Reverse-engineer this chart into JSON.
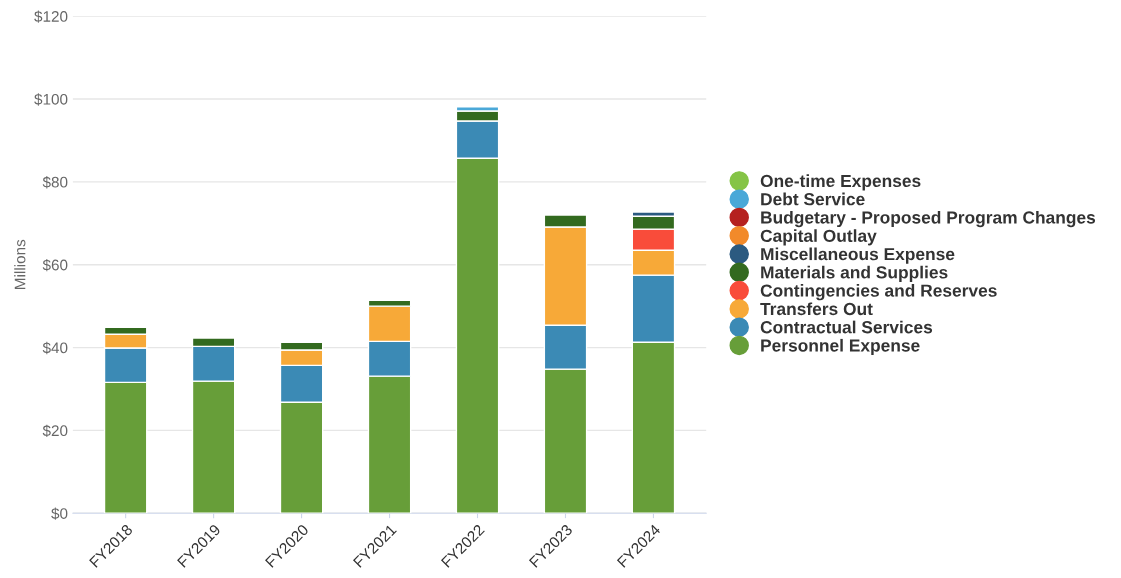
{
  "chart_data": {
    "type": "bar",
    "stacked": true,
    "ylabel": "Millions",
    "categories": [
      "FY2018",
      "FY2019",
      "FY2020",
      "FY2021",
      "FY2022",
      "FY2023",
      "FY2024"
    ],
    "series": [
      {
        "name": "Personnel Expense",
        "color": "#679e39",
        "values": [
          31.6,
          31.9,
          26.8,
          33.1,
          85.7,
          34.8,
          41.3
        ]
      },
      {
        "name": "Contractual Services",
        "color": "#3b8ab5",
        "values": [
          8.3,
          8.4,
          8.9,
          8.4,
          9.0,
          10.6,
          16.2
        ]
      },
      {
        "name": "Transfers Out",
        "color": "#f7a938",
        "values": [
          3.3,
          null,
          3.7,
          8.5,
          null,
          23.7,
          6.0
        ]
      },
      {
        "name": "Contingencies and Reserves",
        "color": "#f94c3a",
        "values": [
          null,
          null,
          null,
          null,
          null,
          null,
          5.1
        ]
      },
      {
        "name": "Materials and Supplies",
        "color": "#336a1f",
        "values": [
          1.7,
          2.0,
          1.9,
          1.4,
          2.4,
          2.9,
          3.1
        ]
      },
      {
        "name": "Miscellaneous Expense",
        "color": "#2b5a80",
        "values": [
          null,
          null,
          null,
          null,
          null,
          null,
          1.0
        ]
      },
      {
        "name": "Capital Outlay",
        "color": "#f28a2a",
        "values": [
          null,
          null,
          null,
          null,
          null,
          null,
          null
        ]
      },
      {
        "name": "Budgetary - Proposed Program Changes",
        "color": "#b5211f",
        "values": [
          null,
          null,
          null,
          null,
          null,
          null,
          null
        ]
      },
      {
        "name": "Debt Service",
        "color": "#4aa8d8",
        "values": [
          null,
          null,
          null,
          null,
          1.0,
          null,
          null
        ]
      },
      {
        "name": "One-time Expenses",
        "color": "#85c446",
        "values": [
          null,
          null,
          null,
          null,
          null,
          null,
          null
        ]
      }
    ],
    "ylim": [
      0,
      120
    ],
    "yticks": [
      {
        "value": 0,
        "label": "$0"
      },
      {
        "value": 20,
        "label": "$20"
      },
      {
        "value": 40,
        "label": "$40"
      },
      {
        "value": 60,
        "label": "$60"
      },
      {
        "value": 80,
        "label": "$80"
      },
      {
        "value": 100,
        "label": "$100"
      },
      {
        "value": 120,
        "label": "$120"
      }
    ],
    "grid": "y",
    "legend": "right"
  }
}
